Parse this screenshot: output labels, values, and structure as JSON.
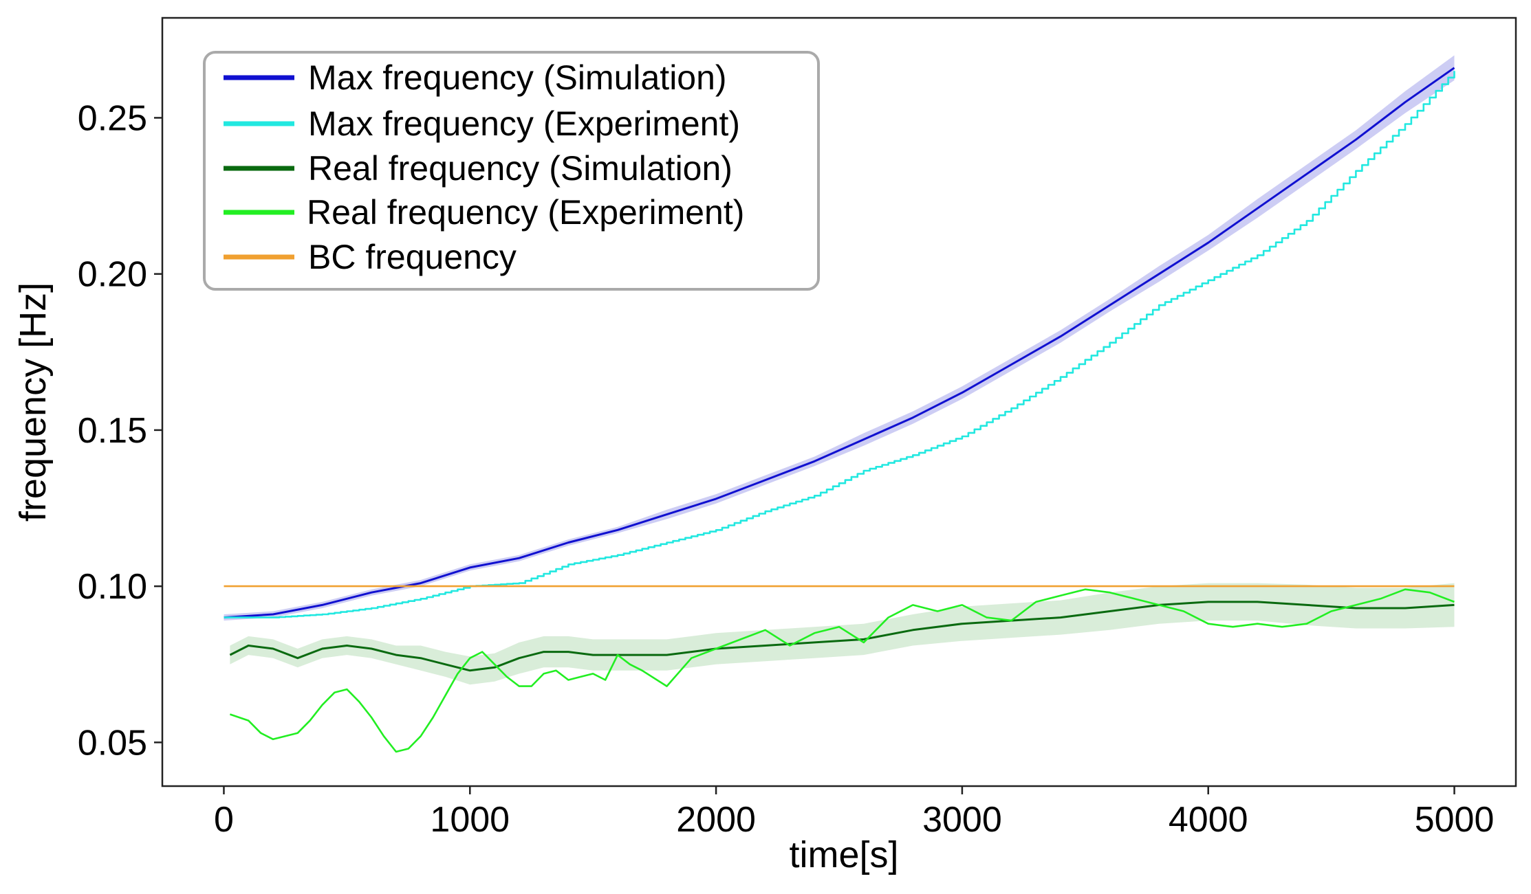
{
  "chart_data": {
    "type": "line",
    "title": "",
    "xlabel": "time[s]",
    "ylabel": "frequency [Hz]",
    "xlim": [
      -250,
      5250
    ],
    "ylim": [
      0.036,
      0.282
    ],
    "xticks": [
      0,
      1000,
      2000,
      3000,
      4000,
      5000
    ],
    "xtick_labels": [
      "0",
      "1000",
      "2000",
      "3000",
      "4000",
      "5000"
    ],
    "yticks": [
      0.05,
      0.1,
      0.15,
      0.2,
      0.25
    ],
    "ytick_labels": [
      "0.05",
      "0.10",
      "0.15",
      "0.20",
      "0.25"
    ],
    "grid": false,
    "legend_position": "top-left",
    "series": [
      {
        "name": "Max frequency (Simulation)",
        "color": "#1010d0",
        "band_color": "#b8b8f0",
        "style": "smooth",
        "x": [
          0,
          200,
          400,
          600,
          800,
          1000,
          1200,
          1400,
          1600,
          1800,
          2000,
          2200,
          2400,
          2600,
          2800,
          3000,
          3200,
          3400,
          3600,
          3800,
          4000,
          4200,
          4400,
          4600,
          4800,
          5000
        ],
        "y": [
          0.09,
          0.091,
          0.094,
          0.098,
          0.101,
          0.106,
          0.109,
          0.114,
          0.118,
          0.123,
          0.128,
          0.134,
          0.14,
          0.147,
          0.154,
          0.162,
          0.171,
          0.18,
          0.19,
          0.2,
          0.21,
          0.221,
          0.232,
          0.243,
          0.255,
          0.266
        ],
        "band": [
          0.001,
          0.001,
          0.001,
          0.001,
          0.001,
          0.001,
          0.001,
          0.001,
          0.001,
          0.0015,
          0.0015,
          0.0015,
          0.0015,
          0.002,
          0.002,
          0.002,
          0.002,
          0.002,
          0.002,
          0.0025,
          0.0025,
          0.003,
          0.003,
          0.003,
          0.0035,
          0.004
        ]
      },
      {
        "name": "Max frequency (Experiment)",
        "color": "#22e8e0",
        "style": "step",
        "x": [
          0,
          200,
          400,
          600,
          800,
          1000,
          1200,
          1400,
          1600,
          1800,
          2000,
          2200,
          2400,
          2600,
          2800,
          3000,
          3200,
          3400,
          3600,
          3800,
          4000,
          4200,
          4400,
          4600,
          4800,
          5000
        ],
        "y": [
          0.09,
          0.09,
          0.091,
          0.093,
          0.096,
          0.1,
          0.101,
          0.107,
          0.11,
          0.114,
          0.118,
          0.124,
          0.129,
          0.137,
          0.142,
          0.148,
          0.157,
          0.167,
          0.178,
          0.19,
          0.198,
          0.206,
          0.217,
          0.233,
          0.248,
          0.265
        ]
      },
      {
        "name": "Real frequency (Simulation)",
        "color": "#0a6a10",
        "band_color": "#c9e6c9",
        "style": "smooth",
        "x": [
          25,
          100,
          200,
          300,
          400,
          500,
          600,
          700,
          800,
          900,
          1000,
          1100,
          1200,
          1300,
          1400,
          1500,
          1600,
          1700,
          1800,
          1900,
          2000,
          2200,
          2400,
          2600,
          2800,
          3000,
          3200,
          3400,
          3600,
          3800,
          4000,
          4200,
          4400,
          4600,
          4800,
          5000
        ],
        "y": [
          0.078,
          0.081,
          0.08,
          0.077,
          0.08,
          0.081,
          0.08,
          0.078,
          0.077,
          0.075,
          0.073,
          0.074,
          0.077,
          0.079,
          0.079,
          0.078,
          0.078,
          0.078,
          0.078,
          0.079,
          0.08,
          0.081,
          0.082,
          0.083,
          0.086,
          0.088,
          0.089,
          0.09,
          0.092,
          0.094,
          0.095,
          0.095,
          0.094,
          0.093,
          0.093,
          0.094
        ],
        "band": [
          0.003,
          0.003,
          0.003,
          0.003,
          0.003,
          0.003,
          0.003,
          0.003,
          0.004,
          0.004,
          0.0045,
          0.0045,
          0.005,
          0.005,
          0.005,
          0.005,
          0.005,
          0.005,
          0.005,
          0.005,
          0.005,
          0.005,
          0.005,
          0.005,
          0.005,
          0.0055,
          0.0055,
          0.0055,
          0.006,
          0.006,
          0.006,
          0.006,
          0.0065,
          0.0065,
          0.0065,
          0.007
        ]
      },
      {
        "name": "Real frequency (Experiment)",
        "color": "#22ee22",
        "style": "line",
        "x": [
          25,
          100,
          150,
          200,
          300,
          350,
          400,
          450,
          500,
          550,
          600,
          650,
          700,
          750,
          800,
          850,
          900,
          950,
          1000,
          1050,
          1100,
          1150,
          1200,
          1250,
          1300,
          1350,
          1400,
          1450,
          1500,
          1550,
          1600,
          1650,
          1700,
          1800,
          1900,
          2000,
          2100,
          2200,
          2300,
          2400,
          2500,
          2600,
          2700,
          2800,
          2900,
          3000,
          3100,
          3200,
          3300,
          3400,
          3500,
          3600,
          3700,
          3800,
          3900,
          4000,
          4100,
          4200,
          4300,
          4400,
          4500,
          4600,
          4700,
          4800,
          4900,
          5000
        ],
        "y": [
          0.059,
          0.057,
          0.053,
          0.051,
          0.053,
          0.057,
          0.062,
          0.066,
          0.067,
          0.063,
          0.058,
          0.052,
          0.047,
          0.048,
          0.052,
          0.058,
          0.065,
          0.072,
          0.077,
          0.079,
          0.075,
          0.071,
          0.068,
          0.068,
          0.072,
          0.073,
          0.07,
          0.071,
          0.072,
          0.07,
          0.078,
          0.075,
          0.073,
          0.068,
          0.077,
          0.08,
          0.083,
          0.086,
          0.081,
          0.085,
          0.087,
          0.082,
          0.09,
          0.094,
          0.092,
          0.094,
          0.09,
          0.089,
          0.095,
          0.097,
          0.099,
          0.098,
          0.096,
          0.094,
          0.092,
          0.088,
          0.087,
          0.088,
          0.087,
          0.088,
          0.092,
          0.094,
          0.096,
          0.099,
          0.098,
          0.095
        ]
      },
      {
        "name": "BC frequency",
        "color": "#f0a030",
        "style": "line",
        "x": [
          0,
          5000
        ],
        "y": [
          0.1,
          0.1
        ]
      }
    ]
  }
}
